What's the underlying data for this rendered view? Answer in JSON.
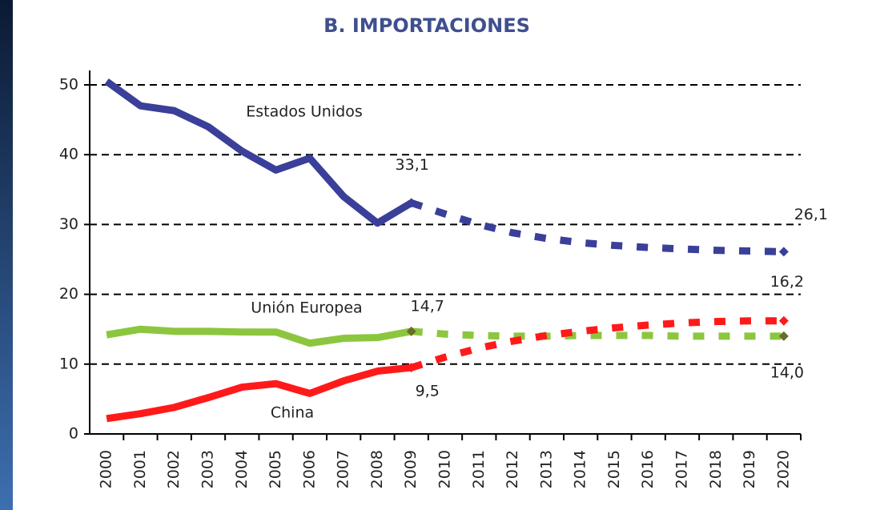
{
  "chart_data": {
    "type": "line",
    "title": "B. IMPORTACIONES",
    "categories": [
      "2000",
      "2001",
      "2002",
      "2003",
      "2004",
      "2005",
      "2006",
      "2007",
      "2008",
      "2009",
      "2010",
      "2011",
      "2012",
      "2013",
      "2014",
      "2015",
      "2016",
      "2017",
      "2018",
      "2019",
      "2020"
    ],
    "forecast_start": "2009",
    "series": [
      {
        "name": "Estados Unidos",
        "color": "#3a3f99",
        "values": [
          50.5,
          47,
          46.3,
          44,
          40.5,
          37.8,
          39.5,
          34,
          30.2,
          33.1,
          31.5,
          30,
          28.8,
          28,
          27.4,
          27,
          26.7,
          26.5,
          26.3,
          26.2,
          26.1
        ],
        "value_labels": [
          null,
          null,
          null,
          null,
          null,
          null,
          null,
          null,
          null,
          "33,1",
          null,
          null,
          null,
          null,
          null,
          null,
          null,
          null,
          null,
          null,
          "26,1"
        ]
      },
      {
        "name": "Unión Europea",
        "color": "#8cc63f",
        "values": [
          14.2,
          15,
          14.7,
          14.7,
          14.6,
          14.6,
          13,
          13.7,
          13.8,
          14.7,
          14.3,
          14.1,
          14,
          14,
          14.1,
          14.1,
          14.1,
          14,
          14,
          14,
          14
        ],
        "value_labels": [
          null,
          null,
          null,
          null,
          null,
          null,
          null,
          null,
          null,
          "14,7",
          null,
          null,
          null,
          null,
          null,
          null,
          null,
          null,
          null,
          null,
          "14,0"
        ]
      },
      {
        "name": "China",
        "color": "#ff1a1a",
        "values": [
          2.2,
          2.9,
          3.8,
          5.2,
          6.7,
          7.2,
          5.8,
          7.6,
          9,
          9.5,
          11,
          12.3,
          13.3,
          14.1,
          14.7,
          15.2,
          15.6,
          15.9,
          16.1,
          16.2,
          16.2
        ],
        "value_labels": [
          null,
          null,
          null,
          null,
          null,
          null,
          null,
          null,
          null,
          "9,5",
          null,
          null,
          null,
          null,
          null,
          null,
          null,
          null,
          null,
          null,
          "16,2"
        ]
      }
    ],
    "ylim": [
      0,
      50
    ],
    "yticks": [
      0,
      10,
      20,
      30,
      40,
      50
    ],
    "grid": true
  }
}
